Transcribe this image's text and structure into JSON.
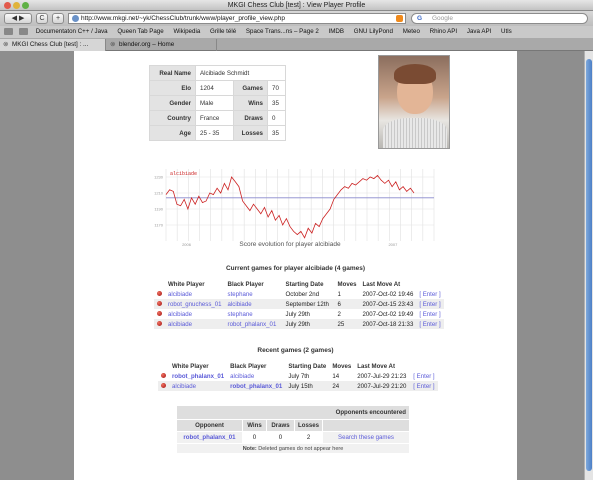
{
  "window": {
    "title": "MKGI Chess Club [test] : View Player Profile"
  },
  "toolbar": {
    "back_icon": "back-arrow-icon",
    "forward_icon": "forward-arrow-icon",
    "reload_label": "C",
    "add_label": "+",
    "url": "http://www.mkgi.net/~yk/ChessClub/trunk/www/player_profile_view.php",
    "search_placeholder": "Google",
    "search_engine_label": "G"
  },
  "bookmarks": [
    "Documentaton C++ / Java",
    "Queen Tab Page",
    "Wikipedia",
    "Grille télé",
    "Space Trans...ns – Page 2",
    "IMDB",
    "GNU LilyPond",
    "Meteo",
    "Rhino API",
    "Java API",
    "Utls"
  ],
  "tabs": [
    {
      "label": "MKGI Chess Club [test] : ...",
      "active": true
    },
    {
      "label": "blender.org – Home",
      "active": false
    }
  ],
  "profile": {
    "real_name_label": "Real Name",
    "real_name": "Alcibiade Schmidt",
    "elo_label": "Elo",
    "elo": "1204",
    "games_label": "Games",
    "games": "70",
    "gender_label": "Gender",
    "gender": "Male",
    "wins_label": "Wins",
    "wins": "35",
    "country_label": "Country",
    "country": "France",
    "draws_label": "Draws",
    "draws": "0",
    "age_label": "Age",
    "age": "25 - 35",
    "losses_label": "Losses",
    "losses": "35"
  },
  "chart_data": {
    "type": "line",
    "series": [
      {
        "name": "alcibiade",
        "color": "#cc2222",
        "values": [
          1208,
          1214,
          1212,
          1196,
          1194,
          1202,
          1190,
          1204,
          1196,
          1206,
          1198,
          1200,
          1210,
          1208,
          1216,
          1210,
          1222,
          1214,
          1230,
          1224,
          1218,
          1200,
          1194,
          1188,
          1196,
          1190,
          1184,
          1192,
          1180,
          1188,
          1176,
          1182,
          1170,
          1178,
          1168,
          1162,
          1158,
          1162,
          1154,
          1166,
          1160,
          1172,
          1168,
          1178,
          1184,
          1190,
          1202,
          1208,
          1214,
          1218,
          1216,
          1222,
          1220,
          1224,
          1228,
          1226,
          1230,
          1228,
          1232,
          1226,
          1222,
          1226,
          1218,
          1224,
          1214,
          1218,
          1212,
          1216,
          1210
        ]
      }
    ],
    "y_ticks": [
      "1230",
      "1210",
      "1190",
      "1170"
    ],
    "x_ticks": [
      "2006",
      "2007"
    ],
    "ylim": [
      1150,
      1240
    ],
    "caption": "Score evolution for player alcibiade"
  },
  "current_games": {
    "heading": "Current games for player alcibiade (4 games)",
    "columns": [
      "White Player",
      "Black Player",
      "Starting Date",
      "Moves",
      "Last Move At",
      ""
    ],
    "rows": [
      [
        "alcibiade",
        "stephane",
        "October 2nd",
        "1",
        "2007-Oct-02 19:46",
        "[ Enter ]"
      ],
      [
        "robot_gnuchess_01",
        "alcibiade",
        "September 12th",
        "6",
        "2007-Oct-15 23:43",
        "[ Enter ]"
      ],
      [
        "alcibiade",
        "stephane",
        "July 29th",
        "2",
        "2007-Oct-02 19:49",
        "[ Enter ]"
      ],
      [
        "alcibiade",
        "robot_phalanx_01",
        "July 29th",
        "25",
        "2007-Oct-18 21:33",
        "[ Enter ]"
      ]
    ]
  },
  "recent_games": {
    "heading": "Recent games (2 games)",
    "columns": [
      "White Player",
      "Black Player",
      "Starting Date",
      "Moves",
      "Last Move At",
      ""
    ],
    "rows": [
      [
        "robot_phalanx_01",
        "alcibiade",
        "July 7th",
        "14",
        "2007-Jul-29 21:23",
        "[ Enter ]"
      ],
      [
        "alcibiade",
        "robot_phalanx_01",
        "July 15th",
        "24",
        "2007-Jul-29 21:20",
        "[ Enter ]"
      ]
    ]
  },
  "opponents": {
    "heading": "Opponents encountered",
    "columns": [
      "Opponent",
      "Wins",
      "Draws",
      "Losses",
      ""
    ],
    "row": [
      "robot_phalanx_01",
      "0",
      "0",
      "2",
      "Search these games"
    ],
    "note_label": "Note:",
    "note": "Deleted games do not appear here"
  }
}
